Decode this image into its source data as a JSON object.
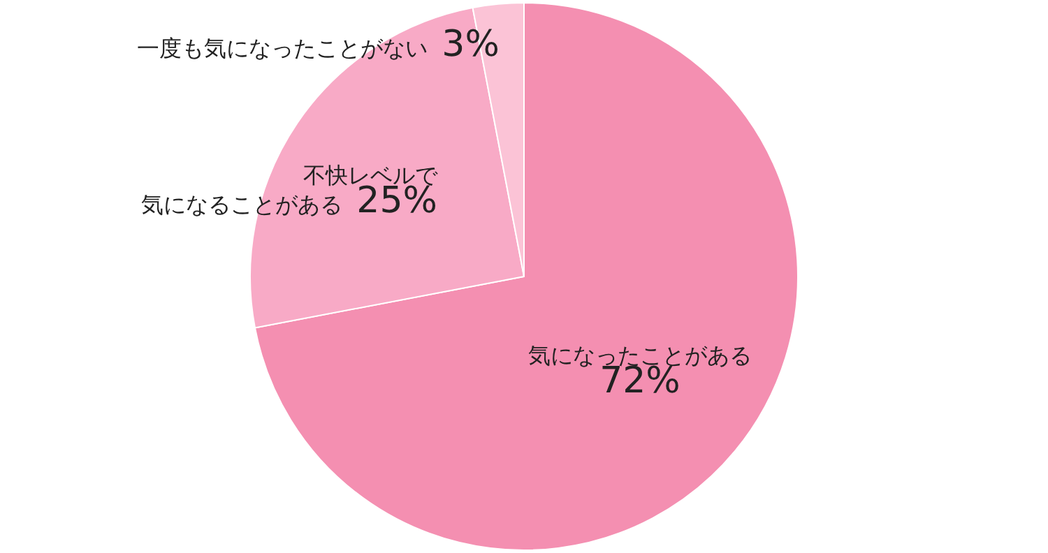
{
  "chart_data": {
    "type": "pie",
    "categories": [
      "気になったことがある",
      "不快レベルで気になることがある",
      "一度も気になったことがない"
    ],
    "values": [
      72,
      25,
      3
    ],
    "value_labels": [
      "72%",
      "25%",
      "3%"
    ],
    "colors": [
      "#f48fb1",
      "#f8aac6",
      "#fbc3d6"
    ]
  }
}
